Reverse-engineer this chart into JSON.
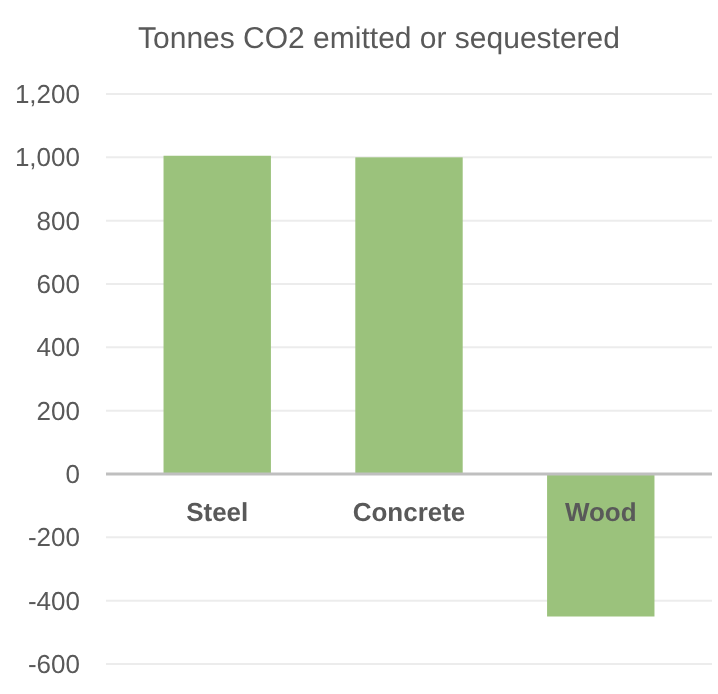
{
  "chart_data": {
    "type": "bar",
    "title": "Tonnes CO2 emitted or sequestered",
    "categories": [
      "Steel",
      "Concrete",
      "Wood"
    ],
    "values": [
      1005,
      1000,
      -450
    ],
    "color": "#9bc27c",
    "ylim": [
      -600,
      1200
    ],
    "yticks": [
      {
        "value": -600,
        "label": "-600"
      },
      {
        "value": -400,
        "label": "-400"
      },
      {
        "value": -200,
        "label": "-200"
      },
      0,
      200,
      400,
      600,
      800,
      {
        "value": 1000,
        "label": "1,000"
      },
      {
        "value": 1200,
        "label": "1,200"
      }
    ],
    "grid": true
  }
}
